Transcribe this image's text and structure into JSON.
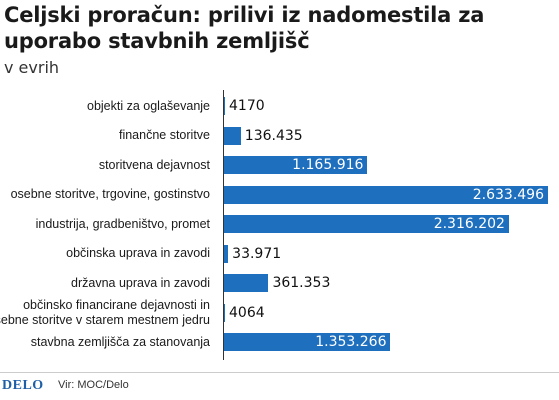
{
  "header": {
    "title": "Celjski proračun: prilivi iz nadomestila za uporabo stavbnih zemljišč",
    "subtitle": "v evrih"
  },
  "footer": {
    "logo": "DELO",
    "source": "Vir: MOC/Delo"
  },
  "colors": {
    "bar": "#1f6fbf"
  },
  "chart_data": {
    "type": "bar",
    "orientation": "horizontal",
    "title": "Celjski proračun: prilivi iz nadomestila za uporabo stavbnih zemljišč",
    "subtitle": "v evrih",
    "categories": [
      "objekti za oglaševanje",
      "finančne storitve",
      "storitvena dejavnost",
      "osebne storitve, trgovine, gostinstvo",
      "industrija, gradbeništvo, promet",
      "občinska uprava in zavodi",
      "državna uprava in zavodi",
      "občinsko financirane dejavnosti in osebne storitve v starem mestnem jedru",
      "stavbna zemljišča za stanovanja"
    ],
    "values": [
      4170,
      136435,
      1165916,
      2633496,
      2316202,
      33971,
      361353,
      4064,
      1353266
    ],
    "value_labels": [
      "4170",
      "136.435",
      "1.165.916",
      "2.633.496",
      "2.316.202",
      "33.971",
      "361.353",
      "4064",
      "1.353.266"
    ],
    "xlim": [
      0,
      2633496
    ],
    "grid": false,
    "legend": "none"
  }
}
